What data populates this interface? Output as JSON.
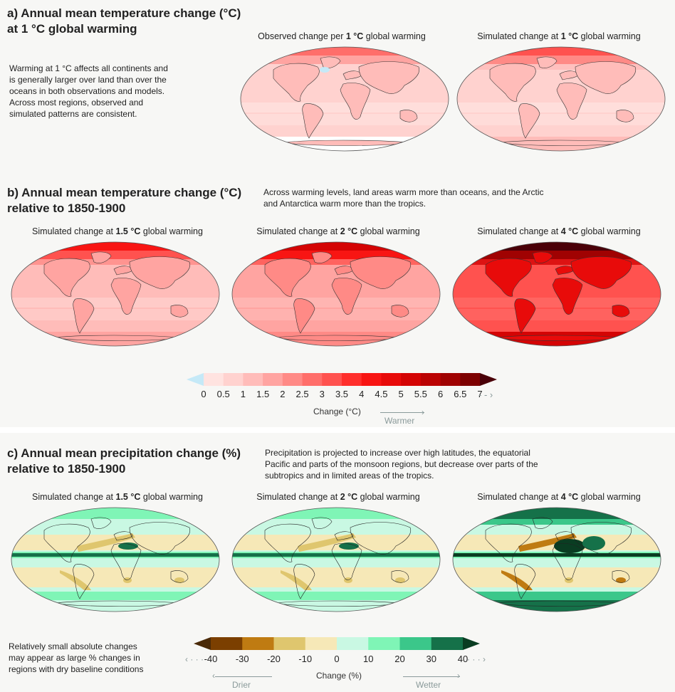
{
  "panels": {
    "a": {
      "title_line1": "a) Annual mean temperature change (°C)",
      "title_line2": "at 1 °C global warming",
      "description": [
        "Warming at 1 °C affects all continents and",
        "is generally larger over land than over the",
        "oceans in both observations and models.",
        "Across most regions, observed and",
        "simulated patterns are consistent."
      ],
      "maps": [
        {
          "caption_pre": "Observed change per ",
          "caption_bold": "1 °C",
          "caption_post": " global warming"
        },
        {
          "caption_pre": "Simulated change at ",
          "caption_bold": "1 °C",
          "caption_post": " global warming"
        }
      ]
    },
    "b": {
      "title_line1": "b) Annual mean temperature change (°C)",
      "title_line2": "relative to 1850-1900",
      "description": [
        "Across warming levels, land areas warm more than oceans, and the Arctic",
        "and Antarctica warm more than the tropics."
      ],
      "maps": [
        {
          "caption_pre": "Simulated change at ",
          "caption_bold": "1.5 °C",
          "caption_post": " global warming"
        },
        {
          "caption_pre": "Simulated change at ",
          "caption_bold": "2 °C",
          "caption_post": " global warming"
        },
        {
          "caption_pre": "Simulated change at ",
          "caption_bold": "4 °C",
          "caption_post": " global warming"
        }
      ]
    },
    "c": {
      "title_line1": "c) Annual mean precipitation change (%)",
      "title_line2": "relative to 1850-1900",
      "description": [
        "Precipitation is projected to increase over high latitudes, the equatorial",
        "Pacific and parts of the monsoon regions, but decrease over parts of the",
        "subtropics and in limited areas of the tropics."
      ],
      "note": [
        "Relatively small absolute changes",
        "may appear as large % changes in",
        "regions with dry baseline conditions"
      ],
      "maps": [
        {
          "caption_pre": "Simulated change at ",
          "caption_bold": "1.5 °C",
          "caption_post": " global warming"
        },
        {
          "caption_pre": "Simulated change at ",
          "caption_bold": "2 °C",
          "caption_post": " global warming"
        },
        {
          "caption_pre": "Simulated change at ",
          "caption_bold": "4 °C",
          "caption_post": " global warming"
        }
      ]
    }
  },
  "temp_colorbar": {
    "label": "Change (°C)",
    "direction_label": "Warmer",
    "more_arrow": "- - ›",
    "ticks": [
      "0",
      "0.5",
      "1",
      "1.5",
      "2",
      "2.5",
      "3",
      "3.5",
      "4",
      "4.5",
      "5",
      "5.5",
      "6",
      "6.5",
      "7"
    ],
    "under_color": "#c5e9f7",
    "colors": [
      "#ffe3e0",
      "#ffd2cf",
      "#ffbcb9",
      "#ffa4a1",
      "#ff8a86",
      "#ff6e6a",
      "#ff524f",
      "#ff2f2c",
      "#f81513",
      "#e80b0a",
      "#d40404",
      "#bb0303",
      "#a00202",
      "#7d0000"
    ],
    "over_color": "#4a0008"
  },
  "precip_colorbar": {
    "label": "Change (%)",
    "left_label": "Drier",
    "right_label": "Wetter",
    "less_arrow": "‹ · · ·",
    "more_arrow": "· · · ›",
    "ticks": [
      "-40",
      "-30",
      "-20",
      "-10",
      "0",
      "10",
      "20",
      "30",
      "40"
    ],
    "under_color": "#4a2a08",
    "colors": [
      "#7b3f00",
      "#bf7b12",
      "#dfc66e",
      "#f6e8b7",
      "#c9f8e3",
      "#7ff5b6",
      "#3bc78a",
      "#157149"
    ],
    "over_color": "#0a3d22"
  },
  "chart_data": [
    {
      "type": "heatmap",
      "title": "a) Annual mean temperature change (°C) at 1 °C global warming",
      "maps": [
        "Observed change per 1 °C global warming",
        "Simulated change at 1 °C global warming"
      ],
      "colorbar": {
        "label": "Change (°C)",
        "ticks": [
          0,
          0.5,
          1,
          1.5,
          2,
          2.5,
          3,
          3.5,
          4,
          4.5,
          5,
          5.5,
          6,
          6.5,
          7
        ],
        "range": [
          0,
          7
        ]
      }
    },
    {
      "type": "heatmap",
      "title": "b) Annual mean temperature change (°C) relative to 1850-1900",
      "maps": [
        "Simulated change at 1.5 °C global warming",
        "Simulated change at 2 °C global warming",
        "Simulated change at 4 °C global warming"
      ],
      "colorbar": {
        "label": "Change (°C)",
        "ticks": [
          0,
          0.5,
          1,
          1.5,
          2,
          2.5,
          3,
          3.5,
          4,
          4.5,
          5,
          5.5,
          6,
          6.5,
          7
        ],
        "range": [
          0,
          7
        ]
      }
    },
    {
      "type": "heatmap",
      "title": "c) Annual mean precipitation change (%) relative to 1850-1900",
      "maps": [
        "Simulated change at 1.5 °C global warming",
        "Simulated change at 2 °C global warming",
        "Simulated change at 4 °C global warming"
      ],
      "colorbar": {
        "label": "Change (%)",
        "ticks": [
          -40,
          -30,
          -20,
          -10,
          0,
          10,
          20,
          30,
          40
        ],
        "range": [
          -40,
          40
        ]
      }
    }
  ]
}
